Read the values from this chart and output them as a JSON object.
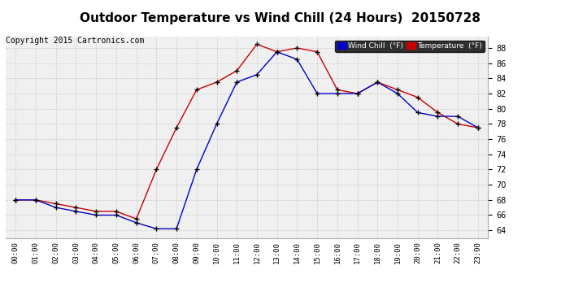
{
  "title": "Outdoor Temperature vs Wind Chill (24 Hours)  20150728",
  "copyright": "Copyright 2015 Cartronics.com",
  "ylim": [
    63.0,
    89.5
  ],
  "yticks": [
    64.0,
    66.0,
    68.0,
    70.0,
    72.0,
    74.0,
    76.0,
    78.0,
    80.0,
    82.0,
    84.0,
    86.0,
    88.0
  ],
  "hours": [
    0,
    1,
    2,
    3,
    4,
    5,
    6,
    7,
    8,
    9,
    10,
    11,
    12,
    13,
    14,
    15,
    16,
    17,
    18,
    19,
    20,
    21,
    22,
    23
  ],
  "temperature": [
    68.0,
    68.0,
    67.5,
    67.0,
    66.5,
    66.5,
    65.5,
    72.0,
    77.5,
    82.5,
    83.5,
    85.0,
    88.5,
    87.5,
    88.0,
    87.5,
    82.5,
    82.0,
    83.5,
    82.5,
    81.5,
    79.5,
    78.0,
    77.5
  ],
  "wind_chill": [
    68.0,
    68.0,
    67.0,
    66.5,
    66.0,
    66.0,
    65.0,
    64.2,
    64.2,
    72.0,
    78.0,
    83.5,
    84.5,
    87.5,
    86.5,
    82.0,
    82.0,
    82.0,
    83.5,
    82.0,
    79.5,
    79.0,
    79.0,
    77.5
  ],
  "temp_color": "#cc0000",
  "wind_color": "#0000cc",
  "bg_color": "#ffffff",
  "plot_bg_color": "#f0f0f0",
  "grid_color": "#cccccc",
  "legend_wind_bg": "#0000cc",
  "legend_temp_bg": "#cc0000",
  "title_fontsize": 11,
  "copyright_fontsize": 7
}
